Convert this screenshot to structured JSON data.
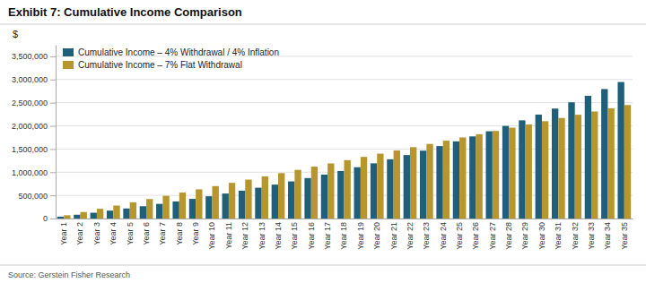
{
  "chart_data": {
    "type": "bar",
    "title": "Exhibit 7: Cumulative Income Comparison",
    "ylabel": "$",
    "source": "Source: Gerstein Fisher Research",
    "categories": [
      "Year 1",
      "Year 2",
      "Year 3",
      "Year 4",
      "Year 5",
      "Year 6",
      "Year 7",
      "Year 8",
      "Year 9",
      "Year 10",
      "Year 11",
      "Year 12",
      "Year 13",
      "Year 14",
      "Year 15",
      "Year 16",
      "Year 17",
      "Year 18",
      "Year 19",
      "Year 20",
      "Year 21",
      "Year 22",
      "Year 23",
      "Year 24",
      "Year 25",
      "Year 26",
      "Year 27",
      "Year 28",
      "Year 29",
      "Year 30",
      "Year 31",
      "Year 32",
      "Year 33",
      "Year 34",
      "Year 35"
    ],
    "series": [
      {
        "name": "Cumulative Income – 4% Withdrawal / 4% Inflation",
        "color": "#1f5f7a",
        "values": [
          40000,
          81600,
          124864,
          169858.56,
          216652.9024,
          265319.018496,
          315931.77923584,
          368569.0504,
          423311.8124,
          480244.2849,
          539454.0563,
          601032.2186,
          665073.5073,
          731676.4476,
          800943.5055,
          872981.2457,
          947900.4956,
          1025816.5154,
          1106849.176,
          1191123.143,
          1278768.0688,
          1369918.7915,
          1464715.5432,
          1563304.1649,
          1665836.3315,
          1772469.7847,
          1883368.5761,
          1998703.3192,
          2118651.4519,
          2243397.51,
          2373133.4104,
          2508058.7468,
          2648381.0967,
          2794316.3406,
          2946088.9942
        ]
      },
      {
        "name": "Cumulative Income – 7% Flat Withdrawal",
        "color": "#b8962e",
        "values": [
          70000,
          140000,
          210000,
          280000,
          350000,
          420000,
          490000,
          560000,
          630000,
          700000,
          770000,
          840000,
          910000,
          980000,
          1050000,
          1120000,
          1190000,
          1260000,
          1330000,
          1400000,
          1470000,
          1540000,
          1610000,
          1680000,
          1750000,
          1820000,
          1890000,
          1960000,
          2030000,
          2100000,
          2170000,
          2240000,
          2310000,
          2380000,
          2450000
        ]
      }
    ],
    "ylim": [
      0,
      3750000
    ],
    "yticks": [
      0,
      {
        "value": 500000,
        "label": "500,000"
      },
      {
        "value": 1000000,
        "label": "1,000,000"
      },
      {
        "value": 1500000,
        "label": "1,500,000"
      },
      {
        "value": 2000000,
        "label": "2,000,000"
      },
      {
        "value": 2500000,
        "label": "2,500,000"
      },
      {
        "value": 3000000,
        "label": "3,000,000"
      },
      {
        "value": 3500000,
        "label": "3,500,000"
      }
    ],
    "grid": true,
    "legend": "upper left"
  }
}
